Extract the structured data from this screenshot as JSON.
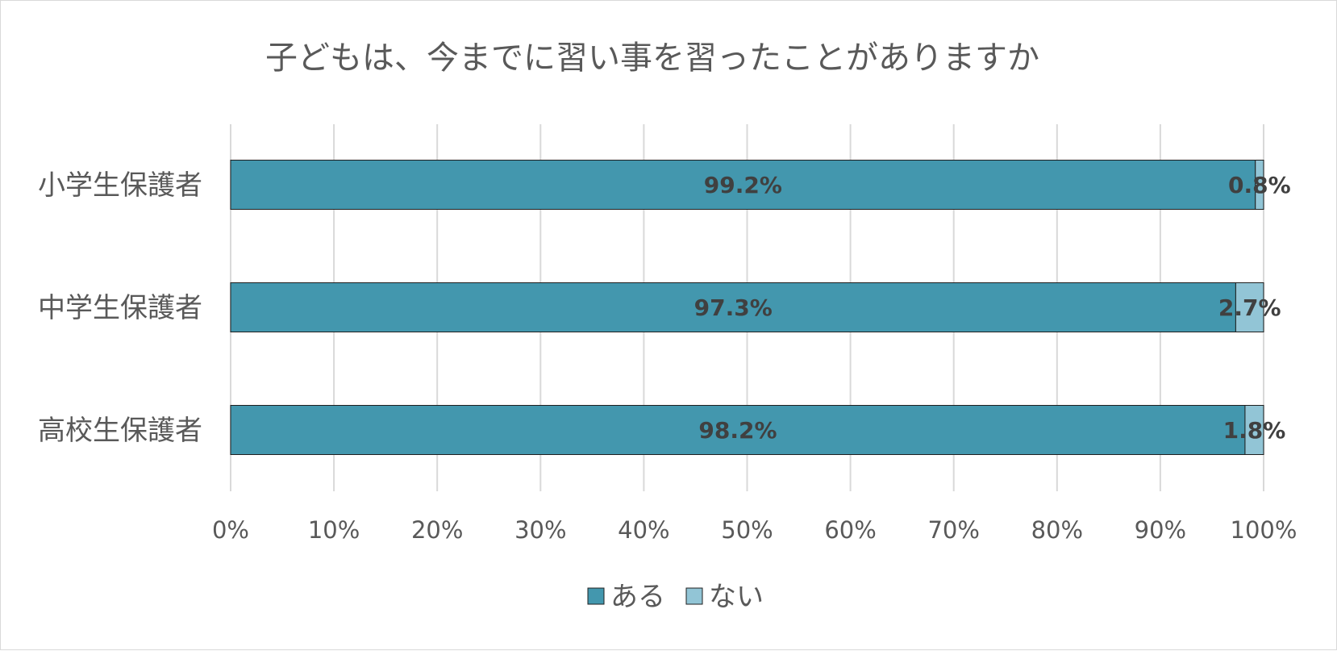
{
  "chart_data": {
    "type": "bar",
    "orientation": "horizontal",
    "stacked": true,
    "title": "子どもは、今までに習い事を習ったことがありますか",
    "categories": [
      "小学生保護者",
      "中学生保護者",
      "高校生保護者"
    ],
    "series": [
      {
        "name": "ある",
        "values": [
          99.2,
          97.3,
          98.2
        ],
        "labels": [
          "99.2%",
          "97.3%",
          "98.2%"
        ],
        "color": "#4397ae"
      },
      {
        "name": "ない",
        "values": [
          0.8,
          2.7,
          1.8
        ],
        "labels": [
          "0.8%",
          "2.7%",
          "1.8%"
        ],
        "color": "#92c5d6"
      }
    ],
    "xlim": [
      0,
      100
    ],
    "x_ticks": [
      "0%",
      "10%",
      "20%",
      "30%",
      "40%",
      "50%",
      "60%",
      "70%",
      "80%",
      "90%",
      "100%"
    ],
    "grid": true,
    "legend_position": "bottom",
    "colors": {
      "gridline": "#d9d9d9",
      "bar_border": "#1f1f1f",
      "text": "#595959",
      "data_label": "#404040"
    }
  }
}
